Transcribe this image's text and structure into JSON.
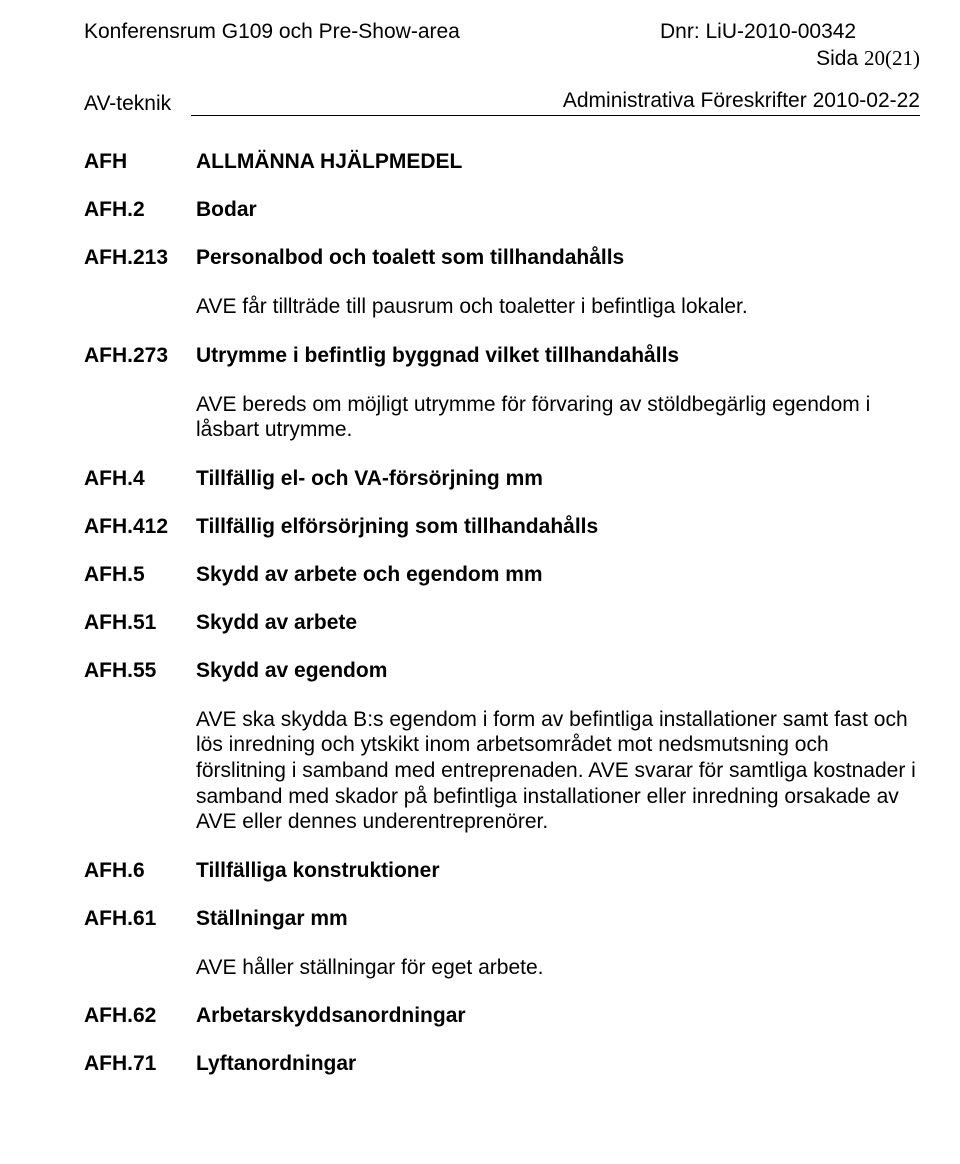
{
  "header": {
    "left": "Konferensrum G109 och Pre-Show-area",
    "dnr": "Dnr: LiU-2010-00342",
    "page_prefix": "Sida ",
    "page_value": "20(21)"
  },
  "subheader": {
    "left": "AV-teknik",
    "right": "Administrativa Föreskrifter 2010-02-22"
  },
  "sections": [
    {
      "code": "AFH",
      "title": "ALLMÄNNA HJÄLPMEDEL",
      "bold": true
    },
    {
      "code": "AFH.2",
      "title": "Bodar",
      "bold": true
    },
    {
      "code": "AFH.213",
      "title": "Personalbod och toalett som tillhandahålls",
      "bold": true
    }
  ],
  "para1": "AVE får tillträde till pausrum och toaletter i befintliga lokaler.",
  "sec273": {
    "code": "AFH.273",
    "title": "Utrymme i befintlig byggnad vilket tillhandahålls"
  },
  "para2": "AVE bereds om möjligt utrymme för förvaring av stöldbegärlig egendom i låsbart utrymme.",
  "sections2": [
    {
      "code": "AFH.4",
      "title": "Tillfällig el- och VA-försörjning mm"
    },
    {
      "code": "AFH.412",
      "title": "Tillfällig elförsörjning som tillhandahålls"
    },
    {
      "code": "AFH.5",
      "title": "Skydd av arbete och egendom mm"
    },
    {
      "code": "AFH.51",
      "title": "Skydd av arbete"
    },
    {
      "code": "AFH.55",
      "title": "Skydd av egendom"
    }
  ],
  "para3": "AVE ska skydda B:s egendom i form av befintliga installationer samt fast och lös inredning och ytskikt inom arbetsområdet mot nedsmutsning och förslitning i samband med entreprenaden. AVE svarar för samtliga kostnader i samband med skador på befintliga installationer eller inredning orsakade av AVE eller dennes underentreprenörer.",
  "sections3": [
    {
      "code": "AFH.6",
      "title": "Tillfälliga konstruktioner"
    },
    {
      "code": "AFH.61",
      "title": "Ställningar mm"
    }
  ],
  "para4": "AVE håller ställningar för eget arbete.",
  "sections4": [
    {
      "code": "AFH.62",
      "title": "Arbetarskyddsanordningar"
    },
    {
      "code": "AFH.71",
      "title": "Lyftanordningar"
    }
  ]
}
